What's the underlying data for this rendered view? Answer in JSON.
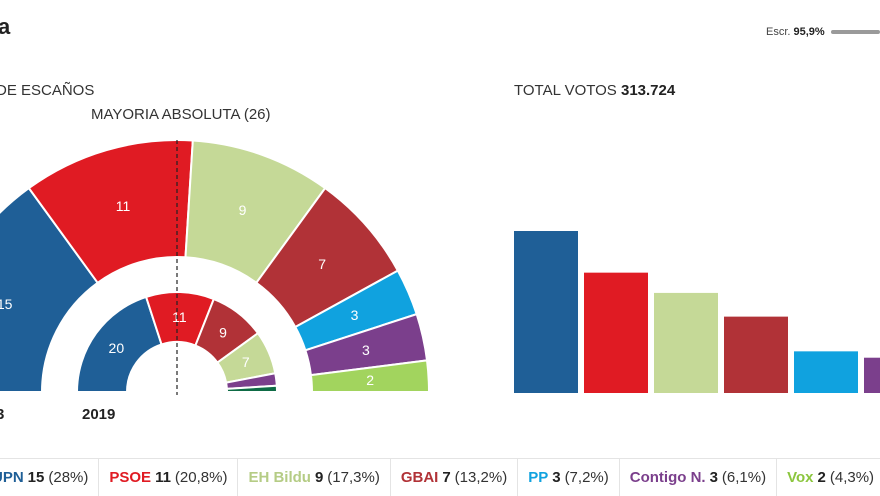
{
  "header": {
    "title": "a",
    "scrutiny_label": "Escr.",
    "scrutiny_value": "95,9%",
    "scrutiny_fraction": 0.959
  },
  "seats_panel": {
    "title": "DE ESCAÑOS",
    "majority_label": "MAYORIA ABSOLUTA (26)",
    "outer_year_label": "3",
    "inner_year_label": "2019"
  },
  "votes_panel": {
    "title_prefix": "TOTAL VOTOS",
    "total": "313.724"
  },
  "chart_data": [
    {
      "type": "pie",
      "subtype": "parliament-semicircle",
      "ring": "outer",
      "total_seats": 50,
      "majority": 26,
      "categories": [
        "UPN",
        "PSOE",
        "EH Bildu",
        "GBAI",
        "PP",
        "Contigo N.",
        "Vox"
      ],
      "values": [
        15,
        11,
        9,
        7,
        3,
        3,
        2
      ],
      "colors": [
        "#1f5f97",
        "#e01b23",
        "#c5d997",
        "#b13237",
        "#10a2df",
        "#7b3f8c",
        "#a2d45e"
      ]
    },
    {
      "type": "pie",
      "subtype": "parliament-semicircle",
      "ring": "inner",
      "year": "2019",
      "total_seats": 50,
      "values": [
        20,
        11,
        9,
        7,
        2,
        1
      ],
      "colors": [
        "#1f5f97",
        "#e01b23",
        "#b13237",
        "#c5d997",
        "#7b3f8c",
        "#0e6b45"
      ]
    },
    {
      "type": "bar",
      "title": "TOTAL VOTOS 313.724",
      "categories": [
        "UPN",
        "PSOE",
        "EH Bildu",
        "GBAI",
        "PP",
        "Contigo N."
      ],
      "values": [
        28,
        20.8,
        17.3,
        13.2,
        7.2,
        6.1
      ],
      "colors": [
        "#1f5f97",
        "#e01b23",
        "#c5d997",
        "#b13237",
        "#10a2df",
        "#7b3f8c"
      ],
      "ylim": [
        0,
        28
      ]
    }
  ],
  "legend": [
    {
      "name": "UPN",
      "seats": "15",
      "pct": "(28%)",
      "color": "#1f5f97"
    },
    {
      "name": "PSOE",
      "seats": "11",
      "pct": "(20,8%)",
      "color": "#e01b23"
    },
    {
      "name": "EH Bildu",
      "seats": "9",
      "pct": "(17,3%)",
      "color": "#b5cc85"
    },
    {
      "name": "GBAI",
      "seats": "7",
      "pct": "(13,2%)",
      "color": "#b13237"
    },
    {
      "name": "PP",
      "seats": "3",
      "pct": "(7,2%)",
      "color": "#10a2df"
    },
    {
      "name": "Contigo N.",
      "seats": "3",
      "pct": "(6,1%)",
      "color": "#7b3f8c"
    },
    {
      "name": "Vox",
      "seats": "2",
      "pct": "(4,3%)",
      "color": "#8cc63f"
    }
  ]
}
